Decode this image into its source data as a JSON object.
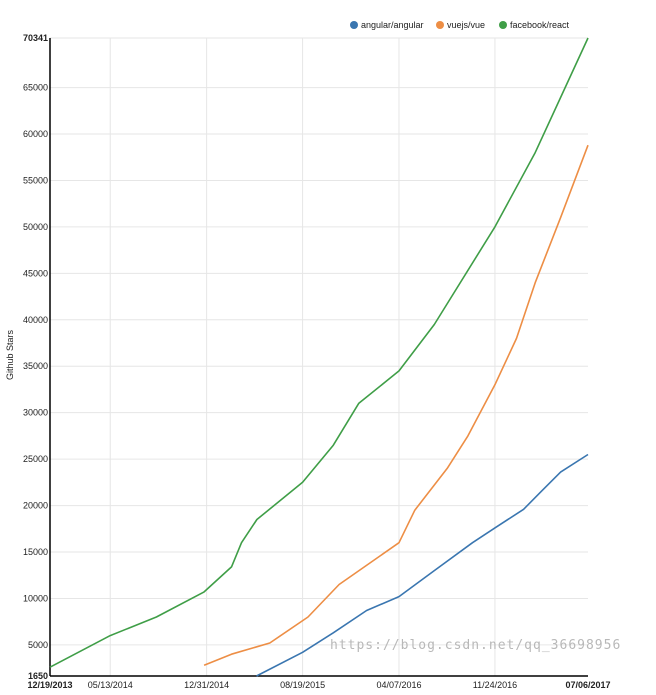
{
  "chart_data": {
    "type": "line",
    "title": "",
    "xlabel": "",
    "ylabel": "Github Stars",
    "ylim": [
      1650,
      70341
    ],
    "xlim": [
      "2013-12-19",
      "2017-07-06"
    ],
    "y_ticks": [
      "70341",
      "65000",
      "60000",
      "55000",
      "50000",
      "45000",
      "40000",
      "35000",
      "30000",
      "25000",
      "20000",
      "15000",
      "10000",
      "5000",
      "1650"
    ],
    "x_ticks": [
      "12/19/2013",
      "05/13/2014",
      "12/31/2014",
      "08/19/2015",
      "04/07/2016",
      "11/24/2016",
      "07/06/2017"
    ],
    "legend_position": "top-right",
    "grid": true,
    "series": [
      {
        "name": "angular/angular",
        "color": "#3a76b0",
        "points": [
          [
            "2015-04-30",
            1650
          ],
          [
            "2015-08-19",
            4200
          ],
          [
            "2015-11-01",
            6300
          ],
          [
            "2016-01-20",
            8700
          ],
          [
            "2016-04-07",
            10200
          ],
          [
            "2016-07-01",
            13000
          ],
          [
            "2016-10-01",
            16000
          ],
          [
            "2016-11-24",
            17600
          ],
          [
            "2017-02-01",
            19600
          ],
          [
            "2017-03-15",
            21500
          ],
          [
            "2017-05-01",
            23600
          ],
          [
            "2017-07-06",
            25500
          ]
        ]
      },
      {
        "name": "vuejs/vue",
        "color": "#ed8e45",
        "points": [
          [
            "2014-12-25",
            2800
          ],
          [
            "2015-03-01",
            4000
          ],
          [
            "2015-06-01",
            5200
          ],
          [
            "2015-09-01",
            8000
          ],
          [
            "2015-11-15",
            11500
          ],
          [
            "2016-04-07",
            16000
          ],
          [
            "2016-05-15",
            19500
          ],
          [
            "2016-08-01",
            24000
          ],
          [
            "2016-09-20",
            27500
          ],
          [
            "2016-11-24",
            33000
          ],
          [
            "2017-01-15",
            38000
          ],
          [
            "2017-03-01",
            44000
          ],
          [
            "2017-05-01",
            51000
          ],
          [
            "2017-07-06",
            58800
          ]
        ]
      },
      {
        "name": "facebook/react",
        "color": "#3f9e47",
        "points": [
          [
            "2013-12-19",
            2600
          ],
          [
            "2014-05-13",
            6000
          ],
          [
            "2014-09-01",
            8000
          ],
          [
            "2014-12-25",
            10700
          ],
          [
            "2015-03-01",
            13400
          ],
          [
            "2015-03-25",
            16000
          ],
          [
            "2015-05-01",
            18500
          ],
          [
            "2015-08-19",
            22500
          ],
          [
            "2015-11-01",
            26500
          ],
          [
            "2016-01-01",
            31000
          ],
          [
            "2016-04-07",
            34500
          ],
          [
            "2016-07-01",
            39500
          ],
          [
            "2016-11-24",
            50000
          ],
          [
            "2017-03-01",
            58000
          ],
          [
            "2017-07-06",
            70341
          ]
        ]
      }
    ]
  },
  "watermark": "https://blog.csdn.net/qq_36698956"
}
